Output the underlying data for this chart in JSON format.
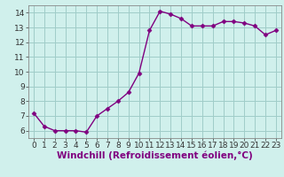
{
  "x": [
    0,
    1,
    2,
    3,
    4,
    5,
    6,
    7,
    8,
    9,
    10,
    11,
    12,
    13,
    14,
    15,
    16,
    17,
    18,
    19,
    20,
    21,
    22,
    23
  ],
  "y": [
    7.2,
    6.3,
    6.0,
    6.0,
    6.0,
    5.9,
    7.0,
    7.5,
    8.0,
    8.6,
    9.9,
    12.8,
    14.1,
    13.9,
    13.6,
    13.1,
    13.1,
    13.1,
    13.4,
    13.4,
    13.3,
    13.1,
    12.5,
    12.8
  ],
  "line_color": "#800080",
  "marker": "D",
  "marker_size": 2.5,
  "bg_color": "#d0f0ec",
  "grid_color": "#a0ccc8",
  "xlabel": "Windchill (Refroidissement éolien,°C)",
  "xlabel_fontsize": 7.5,
  "xlim": [
    -0.5,
    23.5
  ],
  "ylim": [
    5.5,
    14.5
  ],
  "yticks": [
    6,
    7,
    8,
    9,
    10,
    11,
    12,
    13,
    14
  ],
  "xticks": [
    0,
    1,
    2,
    3,
    4,
    5,
    6,
    7,
    8,
    9,
    10,
    11,
    12,
    13,
    14,
    15,
    16,
    17,
    18,
    19,
    20,
    21,
    22,
    23
  ],
  "tick_fontsize": 6.5,
  "line_width": 1.0
}
